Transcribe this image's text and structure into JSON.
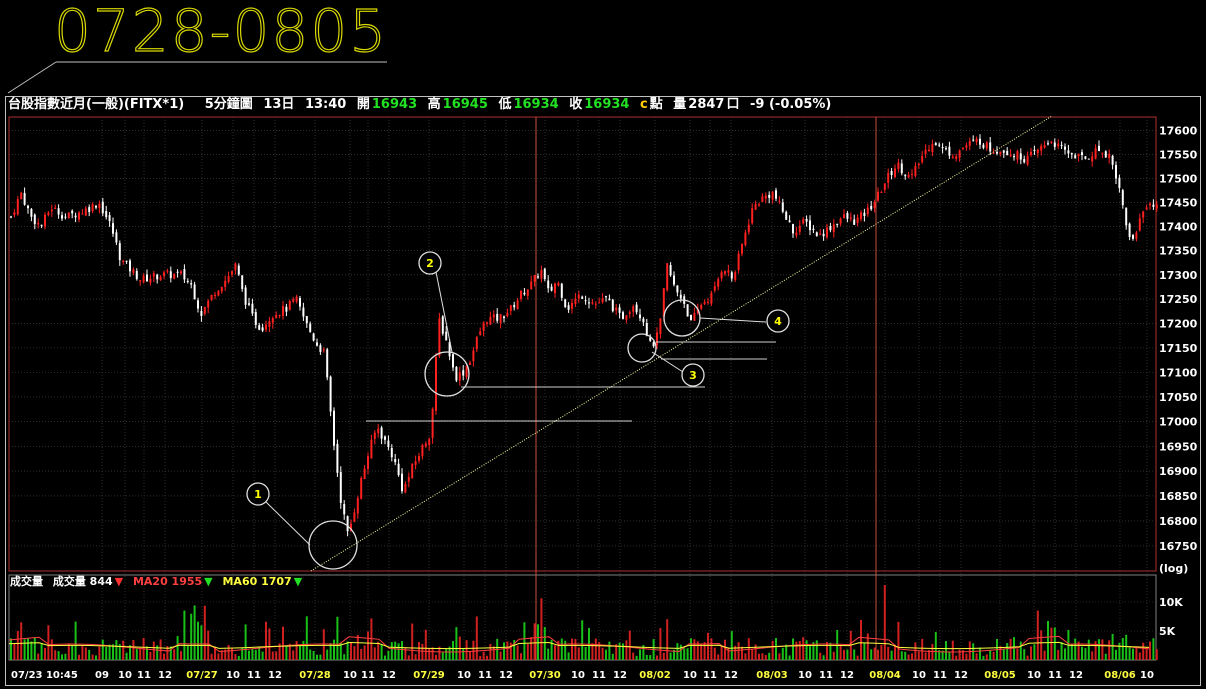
{
  "annotation_title": "0728-0805",
  "header": {
    "instrument": "台股指數近月(一般)(FITX*1)",
    "period": "5分鐘圖",
    "day": "13日",
    "time": "13:40",
    "open_label": "開",
    "open": "16943",
    "high_label": "高",
    "high": "16945",
    "low_label": "低",
    "low": "16934",
    "close_label": "收",
    "close": "16934",
    "close_suffix": "c",
    "unit_label": "點",
    "volume_label": "量",
    "volume": "2847",
    "volume_unit": "口",
    "change": "-9 (-0.05%)"
  },
  "volume_legend": {
    "name": "成交量",
    "total": "成交量 844",
    "ma20": "MA20 1955",
    "ma60": "MA60 1707"
  },
  "markers": [
    "1",
    "2",
    "3",
    "4"
  ],
  "colors": {
    "up": "#ff2020",
    "down": "#ffffff",
    "grid": "#4a4a4a",
    "day_separator": "#c8503c",
    "trendline": "#ffffa0",
    "title": "#d8d800",
    "ma20": "#ff4040",
    "ma60": "#ffff40"
  },
  "chart_data": {
    "type": "candlestick",
    "y_scale": "log",
    "y_scale_label": "(log)",
    "ylim": [
      16700,
      17620
    ],
    "yticks": [
      "17600",
      "17550",
      "17500",
      "17450",
      "17400",
      "17350",
      "17300",
      "17250",
      "17200",
      "17150",
      "17100",
      "17050",
      "17000",
      "16950",
      "16900",
      "16850",
      "16800",
      "16750"
    ],
    "volume_yticks": [
      "10K",
      "5K"
    ],
    "x_labels": [
      "07/23 10:45",
      "09",
      "10",
      "11",
      "12",
      "07/27",
      "10",
      "11",
      "12",
      "07/28",
      "10",
      "11",
      "12",
      "07/29",
      "10",
      "11",
      "12",
      "07/30",
      "10",
      "11",
      "12",
      "08/02",
      "10",
      "11",
      "12",
      "08/03",
      "10",
      "11",
      "12",
      "08/04",
      "10",
      "11",
      "12",
      "08/05",
      "10",
      "11",
      "12",
      "08/06",
      "10"
    ],
    "day_dates": [
      "07/27",
      "07/28",
      "07/29",
      "07/30",
      "08/02",
      "08/03",
      "08/04",
      "08/05",
      "08/06"
    ],
    "price_path": [
      [
        0,
        17420
      ],
      [
        10,
        17470
      ],
      [
        20,
        17420
      ],
      [
        30,
        17400
      ],
      [
        40,
        17440
      ],
      [
        55,
        17420
      ],
      [
        70,
        17430
      ],
      [
        88,
        17450
      ],
      [
        100,
        17400
      ],
      [
        110,
        17330
      ],
      [
        120,
        17310
      ],
      [
        130,
        17290
      ],
      [
        150,
        17300
      ],
      [
        170,
        17300
      ],
      [
        180,
        17280
      ],
      [
        190,
        17220
      ],
      [
        205,
        17270
      ],
      [
        215,
        17290
      ],
      [
        225,
        17320
      ],
      [
        232,
        17260
      ],
      [
        242,
        17210
      ],
      [
        250,
        17190
      ],
      [
        262,
        17220
      ],
      [
        275,
        17230
      ],
      [
        285,
        17250
      ],
      [
        295,
        17200
      ],
      [
        305,
        17160
      ],
      [
        313,
        17140
      ],
      [
        318,
        17050
      ],
      [
        322,
        16970
      ],
      [
        330,
        16840
      ],
      [
        337,
        16770
      ],
      [
        343,
        16820
      ],
      [
        350,
        16880
      ],
      [
        358,
        16940
      ],
      [
        366,
        16990
      ],
      [
        374,
        16960
      ],
      [
        382,
        16930
      ],
      [
        392,
        16860
      ],
      [
        402,
        16910
      ],
      [
        412,
        16950
      ],
      [
        420,
        16980
      ],
      [
        428,
        17210
      ],
      [
        436,
        17160
      ],
      [
        444,
        17090
      ],
      [
        452,
        17100
      ],
      [
        460,
        17130
      ],
      [
        468,
        17180
      ],
      [
        476,
        17210
      ],
      [
        488,
        17210
      ],
      [
        500,
        17230
      ],
      [
        510,
        17260
      ],
      [
        520,
        17280
      ],
      [
        530,
        17310
      ],
      [
        538,
        17260
      ],
      [
        546,
        17290
      ],
      [
        556,
        17230
      ],
      [
        570,
        17260
      ],
      [
        584,
        17240
      ],
      [
        596,
        17250
      ],
      [
        610,
        17210
      ],
      [
        622,
        17240
      ],
      [
        632,
        17210
      ],
      [
        640,
        17150
      ],
      [
        648,
        17180
      ],
      [
        656,
        17320
      ],
      [
        664,
        17270
      ],
      [
        672,
        17250
      ],
      [
        680,
        17200
      ],
      [
        690,
        17240
      ],
      [
        702,
        17260
      ],
      [
        712,
        17320
      ],
      [
        722,
        17290
      ],
      [
        732,
        17370
      ],
      [
        742,
        17440
      ],
      [
        752,
        17460
      ],
      [
        762,
        17470
      ],
      [
        772,
        17430
      ],
      [
        782,
        17390
      ],
      [
        794,
        17410
      ],
      [
        808,
        17380
      ],
      [
        820,
        17400
      ],
      [
        832,
        17420
      ],
      [
        844,
        17410
      ],
      [
        856,
        17430
      ],
      [
        866,
        17460
      ],
      [
        876,
        17500
      ],
      [
        886,
        17530
      ],
      [
        900,
        17500
      ],
      [
        912,
        17550
      ],
      [
        922,
        17580
      ],
      [
        932,
        17560
      ],
      [
        944,
        17550
      ],
      [
        956,
        17570
      ],
      [
        968,
        17580
      ],
      [
        980,
        17560
      ],
      [
        992,
        17560
      ],
      [
        1004,
        17550
      ],
      [
        1016,
        17540
      ],
      [
        1028,
        17560
      ],
      [
        1040,
        17580
      ],
      [
        1050,
        17560
      ],
      [
        1062,
        17550
      ],
      [
        1074,
        17540
      ],
      [
        1086,
        17560
      ],
      [
        1098,
        17550
      ],
      [
        1106,
        17500
      ],
      [
        1114,
        17420
      ],
      [
        1120,
        17360
      ],
      [
        1128,
        17410
      ],
      [
        1136,
        17450
      ],
      [
        1146,
        17440
      ],
      [
        1156,
        17440
      ]
    ]
  }
}
